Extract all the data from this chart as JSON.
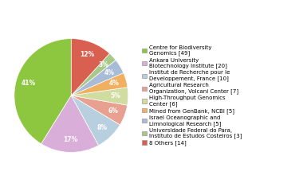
{
  "labels": [
    "Centre for Biodiversity\nGenomics [49]",
    "Ankara University\nBiotechnology Institute [20]",
    "Institut de Recherche pour le\nDeveloppement, France [10]",
    "Agricultural Research\nOrganization, Volcani Center [7]",
    "High-Throughput Genomics\nCenter [6]",
    "Mined from GenBank, NCBI [5]",
    "Israel Oceanographic and\nLimnological Research [5]",
    "Universidade Federal do Para,\nInstituto de Estudos Costeiros [3]",
    "8 Others [14]"
  ],
  "values": [
    49,
    20,
    10,
    7,
    6,
    5,
    5,
    3,
    14
  ],
  "colors": [
    "#8dc63f",
    "#d9aed9",
    "#b8cfe0",
    "#e8a090",
    "#d0dca0",
    "#f0b060",
    "#a8bcd8",
    "#a8c888",
    "#d96050"
  ],
  "pct_fontsize": 5.5,
  "legend_fontsize": 5.0,
  "legend_box_colors": [
    "#8dc63f",
    "#d9aed9",
    "#b8cfe0",
    "#e8a090",
    "#d0dca0",
    "#f0b060",
    "#a8bcd8",
    "#a8c888",
    "#d96050"
  ],
  "startangle": 90,
  "pctdistance": 0.78
}
